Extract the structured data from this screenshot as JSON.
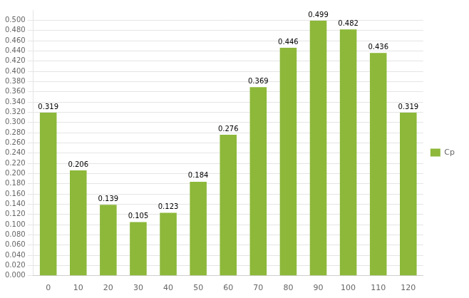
{
  "chart_data": {
    "type": "bar",
    "categories": [
      "0",
      "10",
      "20",
      "30",
      "40",
      "50",
      "60",
      "70",
      "80",
      "90",
      "100",
      "110",
      "120"
    ],
    "series": [
      {
        "name": "Cp",
        "color": "#8DB83A",
        "values": [
          0.319,
          0.206,
          0.139,
          0.105,
          0.123,
          0.184,
          0.276,
          0.369,
          0.446,
          0.499,
          0.482,
          0.436,
          0.319
        ]
      }
    ],
    "ylim": [
      0.0,
      0.52
    ],
    "yticks": [
      {
        "value": 0.0,
        "label": "0.000"
      },
      {
        "value": 0.02,
        "label": "0.020"
      },
      {
        "value": 0.04,
        "label": "0.040"
      },
      {
        "value": 0.06,
        "label": "0.060"
      },
      {
        "value": 0.08,
        "label": "0.080"
      },
      {
        "value": 0.1,
        "label": "0.100"
      },
      {
        "value": 0.12,
        "label": "0.120"
      },
      {
        "value": 0.14,
        "label": "0.140"
      },
      {
        "value": 0.16,
        "label": "0.160"
      },
      {
        "value": 0.18,
        "label": "0.180"
      },
      {
        "value": 0.2,
        "label": "0.200"
      },
      {
        "value": 0.22,
        "label": "0.220"
      },
      {
        "value": 0.24,
        "label": "0.240"
      },
      {
        "value": 0.26,
        "label": "0.260"
      },
      {
        "value": 0.28,
        "label": "0.280"
      },
      {
        "value": 0.3,
        "label": "0.300"
      },
      {
        "value": 0.32,
        "label": "0.320"
      },
      {
        "value": 0.34,
        "label": "0.340"
      },
      {
        "value": 0.36,
        "label": "0.360"
      },
      {
        "value": 0.38,
        "label": "0.380"
      },
      {
        "value": 0.4,
        "label": "0.400"
      },
      {
        "value": 0.42,
        "label": "0.420"
      },
      {
        "value": 0.44,
        "label": "0.440"
      },
      {
        "value": 0.46,
        "label": "0.460"
      },
      {
        "value": 0.48,
        "label": "0.480"
      },
      {
        "value": 0.5,
        "label": "0.500"
      }
    ],
    "grid": true,
    "legend": "right",
    "data_labels": true
  }
}
